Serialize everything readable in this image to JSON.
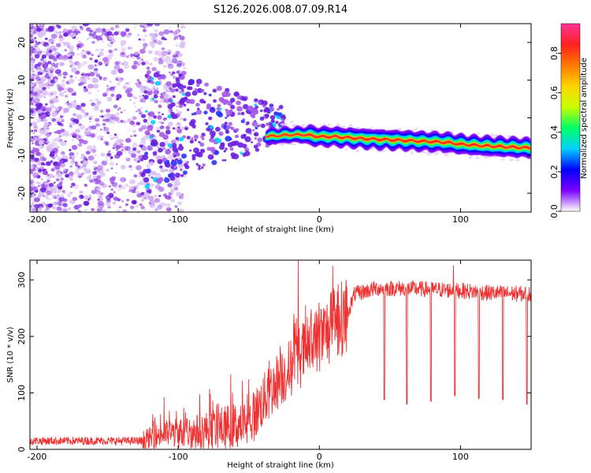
{
  "title": "S126.2026.008.07.09.R14",
  "colors": {
    "trace": "#ef3131",
    "frame": "#000000",
    "scatter_dim": "#d9bff5",
    "scatter_mid": "#a55be8",
    "scatter_strong": "#6a1fe0"
  },
  "chart_data": [
    {
      "type": "heatmap",
      "name": "spectrogram",
      "xlabel": "Height of straight line (km)",
      "ylabel": "Frequency (Hz)",
      "xlim": [
        -205,
        150
      ],
      "ylim": [
        -25,
        25
      ],
      "xticks": [
        -200,
        -100,
        0,
        100
      ],
      "xtick_labels": [
        "-200",
        "-100",
        "0",
        "100"
      ],
      "yticks": [
        20,
        10,
        0,
        -10,
        -20
      ],
      "ytick_labels": [
        "20",
        "10",
        "0",
        "-10",
        "-20"
      ],
      "colorbar": {
        "label": "Normalized spectral amplitude",
        "range": [
          0.0,
          0.95
        ],
        "ticks": [
          0.0,
          0.2,
          0.4,
          0.6,
          0.8
        ],
        "tick_labels": [
          "0.0",
          "0.2",
          "0.4",
          "0.6",
          "0.8"
        ],
        "colormap": [
          "#ffffff",
          "#7b00ff",
          "#0000ff",
          "#00d0ff",
          "#00ff66",
          "#c8ff00",
          "#ffd400",
          "#ff7a00",
          "#ff2020",
          "#ff3399"
        ]
      },
      "ridge_frequency_track": {
        "x": [
          -40,
          -20,
          -10,
          0,
          10,
          30,
          60,
          90,
          100,
          120,
          150
        ],
        "y": [
          -5,
          -4.5,
          -4.5,
          -5,
          -5,
          -5.5,
          -6,
          -6.5,
          -7,
          -7.5,
          -8
        ]
      }
    },
    {
      "type": "line",
      "name": "snr",
      "xlabel": "Height of straight line (km)",
      "ylabel": "SNR (10 * v/v)",
      "xlim": [
        -205,
        150
      ],
      "ylim": [
        0,
        335
      ],
      "xticks": [
        -200,
        -100,
        0,
        100
      ],
      "xtick_labels": [
        "-200",
        "-100",
        "0",
        "100"
      ],
      "yticks": [
        0,
        100,
        200,
        300
      ],
      "ytick_labels": [
        "0",
        "100",
        "200",
        "300"
      ],
      "envelope": {
        "x": [
          -205,
          -180,
          -150,
          -125,
          -110,
          -90,
          -70,
          -50,
          -40,
          -30,
          -20,
          -10,
          0,
          10,
          20,
          25,
          40,
          60,
          80,
          100,
          120,
          150
        ],
        "y": [
          15,
          15,
          15,
          15,
          28,
          30,
          38,
          45,
          85,
          120,
          145,
          175,
          195,
          220,
          240,
          275,
          285,
          285,
          283,
          281,
          277,
          275
        ]
      },
      "dips": {
        "x": [
          46,
          62,
          79,
          96,
          113,
          130,
          147
        ],
        "y": [
          88,
          80,
          85,
          95,
          90,
          88,
          80
        ]
      },
      "spikes": {
        "x": [
          -15,
          -18,
          95
        ],
        "y": [
          335,
          240,
          325
        ]
      }
    }
  ]
}
